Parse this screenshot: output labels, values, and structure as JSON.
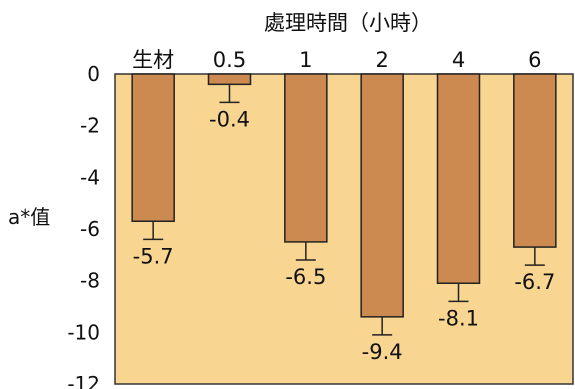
{
  "chart_data": {
    "type": "bar",
    "title": "處理時間（小時）",
    "xlabel": "處理時間（小時）",
    "ylabel": "a*值",
    "categories": [
      "生材",
      "0.5",
      "1",
      "2",
      "4",
      "6"
    ],
    "values": [
      -5.7,
      -0.4,
      -6.5,
      -9.4,
      -8.1,
      -6.7
    ],
    "errors": [
      0.7,
      0.7,
      0.7,
      0.7,
      0.7,
      0.7
    ],
    "data_labels": [
      "-5.7",
      "-0.4",
      "-6.5",
      "-9.4",
      "-8.1",
      "-6.7"
    ],
    "yticks": [
      0,
      -2,
      -4,
      -6,
      -8,
      -10,
      -12
    ],
    "ylim": [
      -12,
      0
    ],
    "grid": false,
    "category_axis_position": "top",
    "colors": {
      "plot_background": "#F8D591",
      "bar_fill": "#CC8A50",
      "bar_stroke": "#222222",
      "text": "#111111"
    }
  }
}
